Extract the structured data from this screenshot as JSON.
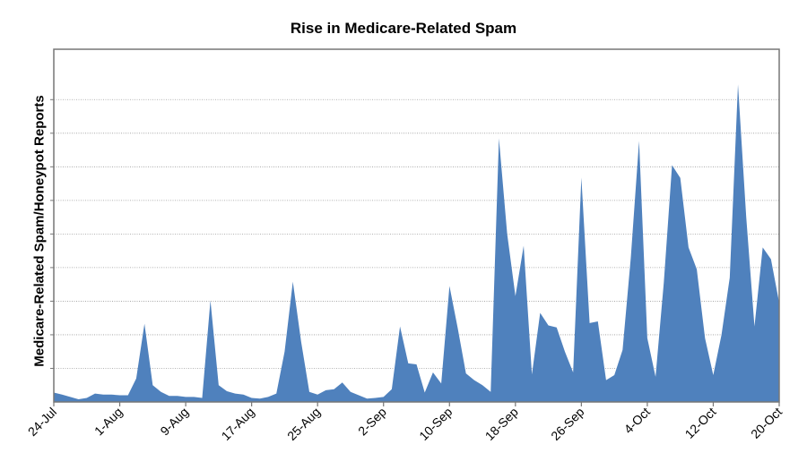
{
  "chart_data": {
    "type": "area",
    "title": "Rise in Medicare-Related Spam",
    "xlabel": "",
    "ylabel": "Medicare-Related Spam/Honeypot Reports",
    "x_start": "24-Jul",
    "x_end": "20-Oct",
    "x_ticks": [
      "24-Jul",
      "1-Aug",
      "9-Aug",
      "17-Aug",
      "25-Aug",
      "2-Sep",
      "10-Sep",
      "18-Sep",
      "26-Sep",
      "4-Oct",
      "12-Oct",
      "20-Oct"
    ],
    "y_tick_labels_visible": false,
    "ylim": [
      0,
      10.5
    ],
    "y_gridlines": 9,
    "grid": true,
    "legend": "none",
    "color": "#4f81bd",
    "series": [
      {
        "values": [
          0.28,
          0.22,
          0.15,
          0.08,
          0.12,
          0.25,
          0.22,
          0.22,
          0.2,
          0.2,
          0.7,
          2.33,
          0.5,
          0.3,
          0.18,
          0.18,
          0.15,
          0.15,
          0.12,
          3.02,
          0.5,
          0.32,
          0.25,
          0.22,
          0.12,
          0.1,
          0.15,
          0.25,
          1.5,
          3.58,
          1.8,
          0.3,
          0.22,
          0.35,
          0.38,
          0.58,
          0.3,
          0.2,
          0.1,
          0.12,
          0.15,
          0.38,
          2.25,
          1.15,
          1.12,
          0.28,
          0.88,
          0.55,
          3.45,
          2.2,
          0.85,
          0.65,
          0.5,
          0.3,
          7.85,
          5.0,
          3.15,
          4.65,
          0.82,
          2.65,
          2.28,
          2.22,
          1.5,
          0.88,
          6.68,
          2.35,
          2.4,
          0.65,
          0.8,
          1.55,
          4.3,
          7.77,
          1.9,
          0.75,
          3.55,
          7.05,
          6.67,
          4.6,
          3.95,
          1.9,
          0.8,
          2.0,
          3.7,
          9.45,
          5.5,
          2.25,
          4.6,
          4.25,
          2.95
        ]
      }
    ]
  }
}
